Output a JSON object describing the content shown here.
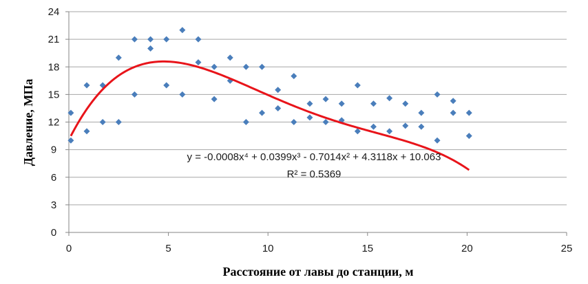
{
  "chart_data": {
    "type": "scatter",
    "xlabel": "Расстояние от лавы до станции, м",
    "ylabel": "Давление, МПа",
    "xlim": [
      0,
      25
    ],
    "ylim": [
      0,
      24
    ],
    "x_ticks": [
      "0",
      "5",
      "10",
      "15",
      "20",
      "25"
    ],
    "y_ticks": [
      "0",
      "3",
      "6",
      "9",
      "12",
      "15",
      "18",
      "21",
      "24"
    ],
    "grid": "horizontal",
    "points": [
      [
        0.1,
        13
      ],
      [
        0.1,
        10
      ],
      [
        0.9,
        16
      ],
      [
        0.9,
        11
      ],
      [
        1.7,
        16
      ],
      [
        1.7,
        12
      ],
      [
        2.5,
        19
      ],
      [
        2.5,
        12
      ],
      [
        3.3,
        21
      ],
      [
        3.3,
        15
      ],
      [
        4.1,
        21
      ],
      [
        4.1,
        20
      ],
      [
        4.9,
        21
      ],
      [
        4.9,
        16
      ],
      [
        5.7,
        22
      ],
      [
        5.7,
        15
      ],
      [
        6.5,
        21
      ],
      [
        6.5,
        18.5
      ],
      [
        7.3,
        18
      ],
      [
        7.3,
        14.5
      ],
      [
        8.1,
        19
      ],
      [
        8.1,
        16.5
      ],
      [
        8.9,
        18
      ],
      [
        8.9,
        12
      ],
      [
        9.7,
        18
      ],
      [
        9.7,
        13
      ],
      [
        10.5,
        15.5
      ],
      [
        10.5,
        13.5
      ],
      [
        11.3,
        17
      ],
      [
        11.3,
        12
      ],
      [
        12.1,
        14
      ],
      [
        12.1,
        12.5
      ],
      [
        12.9,
        14.5
      ],
      [
        12.9,
        12
      ],
      [
        13.7,
        14
      ],
      [
        13.7,
        12.2
      ],
      [
        14.5,
        16
      ],
      [
        14.5,
        11
      ],
      [
        15.3,
        14
      ],
      [
        15.3,
        11.5
      ],
      [
        16.1,
        14.6
      ],
      [
        16.1,
        11
      ],
      [
        16.9,
        14
      ],
      [
        16.9,
        11.6
      ],
      [
        17.7,
        13
      ],
      [
        17.7,
        11.5
      ],
      [
        18.5,
        15
      ],
      [
        18.5,
        10
      ],
      [
        19.3,
        14.3
      ],
      [
        19.3,
        13
      ],
      [
        20.1,
        13
      ],
      [
        20.1,
        10.5
      ]
    ],
    "trendline": {
      "type": "polynomial",
      "coefficients": [
        10.063,
        4.3118,
        -0.7014,
        0.0399,
        -0.0008
      ],
      "x_range": [
        0.1,
        20.1
      ],
      "color": "#e8141a"
    },
    "equation_label": "y = -0.0008x⁴ + 0.0399x³ - 0.7014x² + 4.3118x + 10.063",
    "r2_label": "R² = 0.5369",
    "marker_color": "#4a7ebb",
    "grid_color": "#a6a6a6",
    "axis_color": "#868686"
  }
}
